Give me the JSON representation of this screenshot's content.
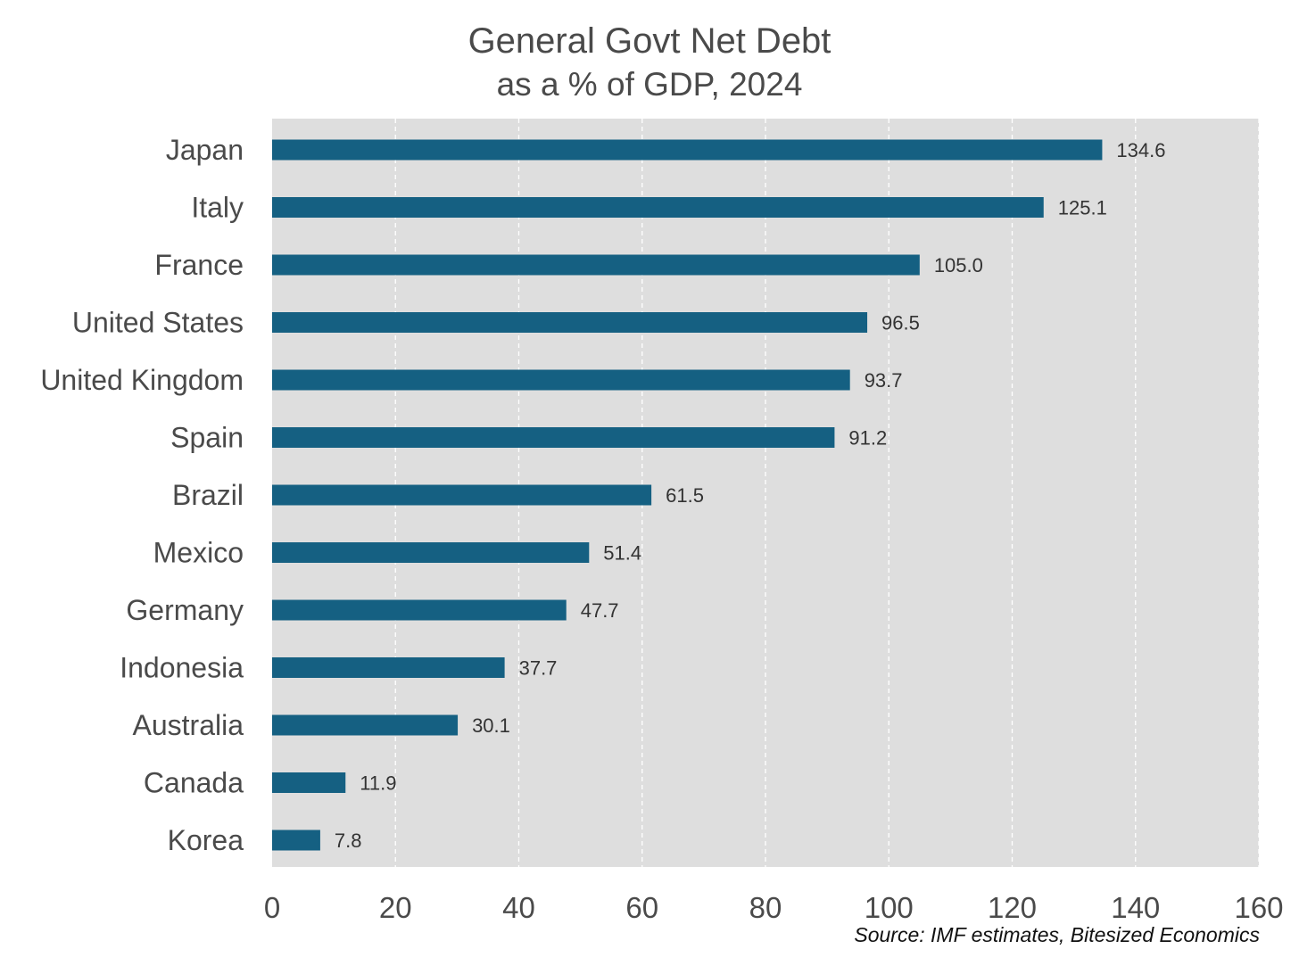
{
  "chart_data": {
    "type": "bar",
    "orientation": "horizontal",
    "title": "General Govt Net Debt",
    "subtitle": "as a % of GDP,  2024",
    "xlabel": "",
    "ylabel": "",
    "xlim": [
      0,
      160
    ],
    "x_ticks": [
      0,
      20,
      40,
      60,
      80,
      100,
      120,
      140,
      160
    ],
    "grid": "vertical dashed",
    "categories": [
      "Japan",
      "Italy",
      "France",
      "United States",
      "United Kingdom",
      "Spain",
      "Brazil",
      "Mexico",
      "Germany",
      "Indonesia",
      "Australia",
      "Canada",
      "Korea"
    ],
    "values": [
      134.6,
      125.1,
      105.0,
      96.5,
      93.7,
      91.2,
      61.5,
      51.4,
      47.7,
      37.7,
      30.1,
      11.9,
      7.8
    ],
    "data_labels": [
      "134.6",
      "125.1",
      "105.0",
      "96.5",
      "93.7",
      "91.2",
      "61.5",
      "51.4",
      "47.7",
      "37.7",
      "30.1",
      "11.9",
      "7.8"
    ],
    "source": "Source: IMF estimates, Bitesized Economics",
    "colors": {
      "bar": "#156082",
      "plot_background": "#dedede",
      "grid": "#ffffff",
      "text": "#4a4a4a"
    }
  }
}
